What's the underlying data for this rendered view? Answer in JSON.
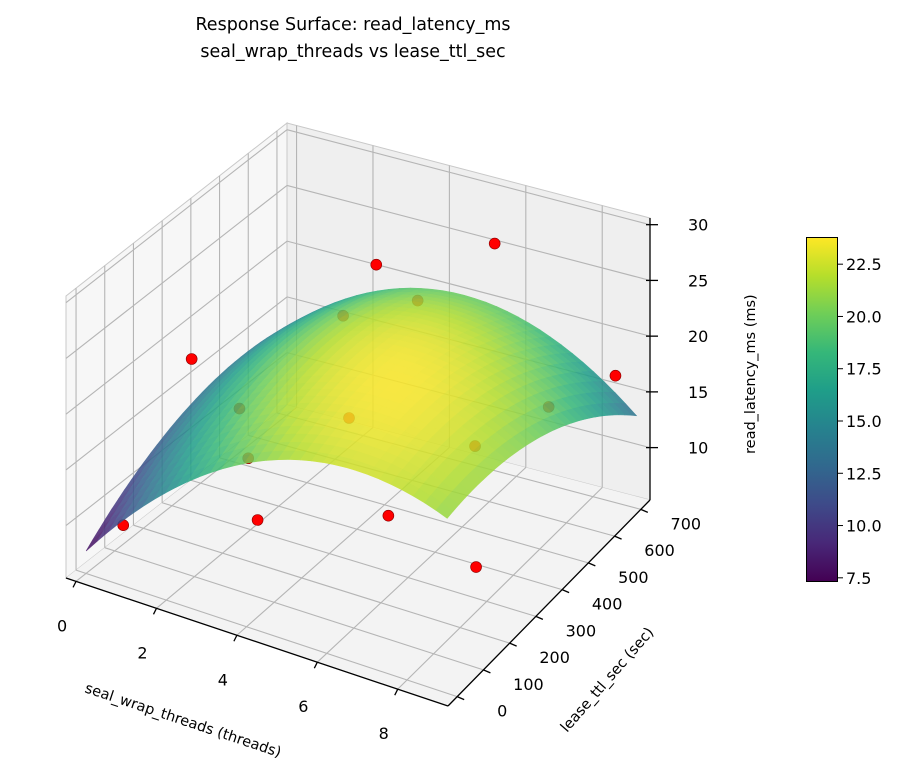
{
  "chart_data": {
    "type": "surface3d",
    "title_line1": "Response Surface: read_latency_ms",
    "title_line2": "seal_wrap_threads vs lease_ttl_sec",
    "xlabel": "seal_wrap_threads (threads)",
    "ylabel": "lease_ttl_sec (sec)",
    "zlabel": "read_latency_ms (ms)",
    "xlim": [
      -0.25,
      9.25
    ],
    "ylim": [
      -35,
      735
    ],
    "zlim": [
      5.3,
      30.6
    ],
    "x_ticks": [
      0,
      2,
      4,
      6,
      8
    ],
    "y_ticks": [
      0,
      100,
      200,
      300,
      400,
      500,
      600,
      700
    ],
    "z_ticks": [
      10,
      15,
      20,
      25,
      30
    ],
    "surface": {
      "x_range": [
        0,
        9
      ],
      "y_range": [
        0,
        720
      ],
      "peak": {
        "x": 6,
        "y": 250,
        "z": 23.7
      },
      "coef_x2": 0.329,
      "coef_y2_per_100": 0.2142,
      "coef_xy_per_100": -0.2137,
      "colormap": "viridis",
      "alpha": 0.85
    },
    "points_color": "#ff0000",
    "points": [
      {
        "x": 0.5,
        "y": 60,
        "z": 9
      },
      {
        "x": 4,
        "y": 40,
        "z": 14
      },
      {
        "x": 0.5,
        "y": 300,
        "z": 19
      },
      {
        "x": 1.5,
        "y": 330,
        "z": 15
      },
      {
        "x": 2.5,
        "y": 560,
        "z": 19.5
      },
      {
        "x": 4,
        "y": 620,
        "z": 21
      },
      {
        "x": 4,
        "y": 470,
        "z": 27.5
      },
      {
        "x": 6,
        "y": 620,
        "z": 28
      },
      {
        "x": 4.5,
        "y": 300,
        "z": 18
      },
      {
        "x": 9,
        "y": 640,
        "z": 18.5
      },
      {
        "x": 7,
        "y": 80,
        "z": 17
      },
      {
        "x": 7.5,
        "y": 330,
        "z": 18
      },
      {
        "x": 9,
        "y": 110,
        "z": 14
      },
      {
        "x": 8.5,
        "y": 460,
        "z": 19.5
      },
      {
        "x": 3,
        "y": 150,
        "z": 16
      }
    ],
    "colorbar": {
      "range": [
        7.3,
        23.8
      ],
      "ticks": [
        "7.5",
        "10.0",
        "12.5",
        "15.0",
        "17.5",
        "20.0",
        "22.5"
      ]
    }
  }
}
